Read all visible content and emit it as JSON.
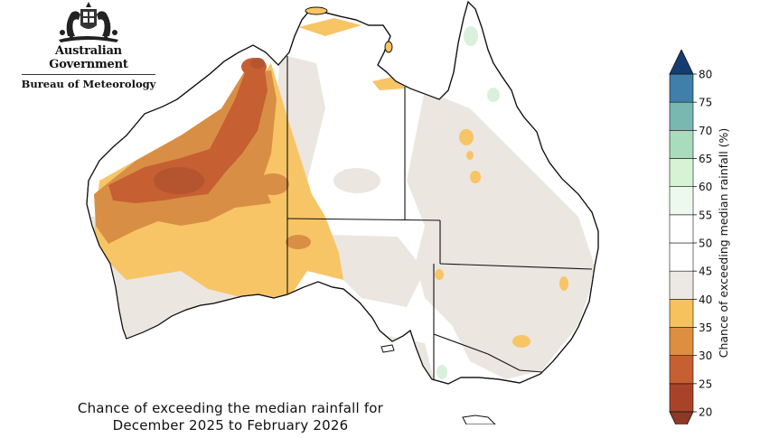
{
  "header": {
    "government": "Australian Government",
    "bureau": "Bureau of Meteorology"
  },
  "caption": {
    "line1": "Chance of exceeding the median rainfall for",
    "line2": "December 2025 to February 2026"
  },
  "colorbar": {
    "label": "Chance of exceeding median rainfall (%)",
    "ticks": [
      "20",
      "25",
      "30",
      "35",
      "40",
      "45",
      "50",
      "55",
      "60",
      "65",
      "70",
      "75",
      "80"
    ],
    "colors": [
      "#a8432a",
      "#c65f32",
      "#dd8e3f",
      "#f6c25e",
      "#ece8e3",
      "#ffffff",
      "#ffffff",
      "#eef9ee",
      "#d6f3d3",
      "#a9dcbc",
      "#79b8b0",
      "#3f7fa9",
      "#17507f"
    ],
    "under_color": "#8c3a25",
    "over_color": "#163d72"
  },
  "legend_colors": {
    "below_median_dark": "#b4552f",
    "below_median_mid": "#d88f45",
    "below_median_light": "#f7c566",
    "near_median": "#ebe6e0",
    "above_median_light": "#d9f1da"
  }
}
